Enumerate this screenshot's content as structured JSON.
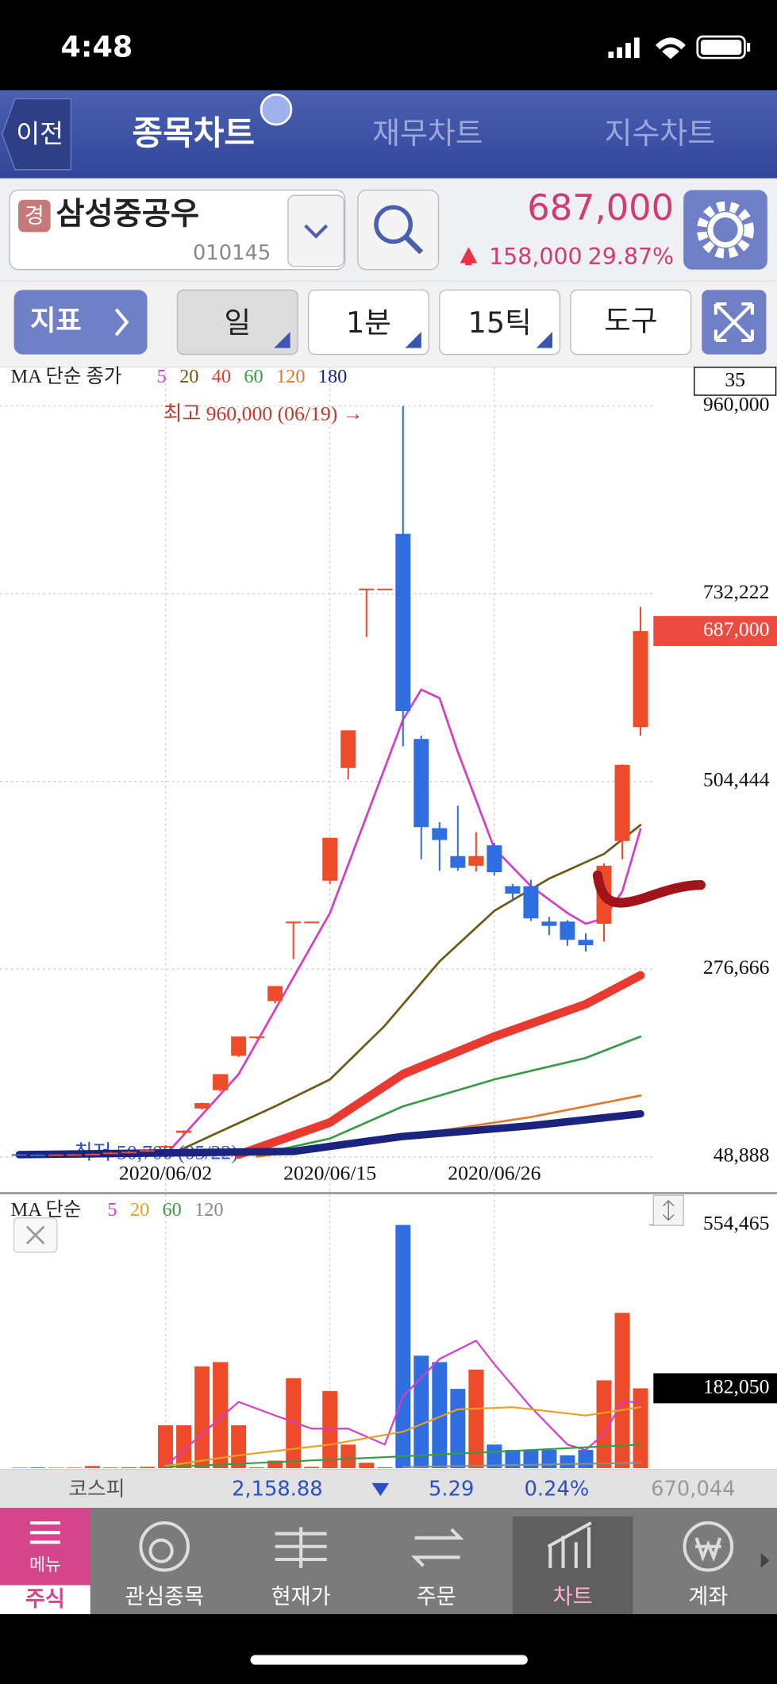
{
  "status_bar": {
    "time": "4:48"
  },
  "nav": {
    "back": "이전",
    "tabs": [
      "종목차트",
      "재무차트",
      "지수차트"
    ]
  },
  "stock": {
    "badge": "경",
    "name": "삼성중공우",
    "code": "010145",
    "price": "687,000",
    "change": "158,000",
    "change_rate": "29.87%"
  },
  "toolbar": [
    "지표",
    "일",
    "1분",
    "15틱",
    "도구"
  ],
  "price_chart": {
    "type": "candlestick",
    "legend_title": "MA 단순 종가",
    "count_label": "35",
    "categories": [
      null,
      null,
      null,
      null,
      null,
      null,
      null,
      null,
      "2020/06/02",
      null,
      null,
      null,
      null,
      null,
      null,
      null,
      null,
      "2020/06/15",
      null,
      null,
      null,
      null,
      null,
      null,
      null,
      null,
      "2020/06/26",
      null,
      null,
      null,
      null,
      null,
      null,
      null,
      null
    ],
    "open": [
      52000,
      51500,
      51000,
      51800,
      52000,
      52500,
      54000,
      55000,
      60000,
      78000,
      107500,
      129700,
      171400,
      194800,
      237800,
      334300,
      334300,
      383900,
      520700,
      738400,
      738400,
      804900,
      555900,
      447700,
      413800,
      402100,
      426900,
      377300,
      377300,
      334300,
      334300,
      312200,
      331700,
      432100,
      570300
    ],
    "high": [
      52500,
      52000,
      52000,
      52500,
      53000,
      55000,
      56000,
      58000,
      63000,
      81000,
      114500,
      149200,
      194800,
      194800,
      256100,
      334300,
      334300,
      436000,
      566400,
      738400,
      738400,
      960000,
      560000,
      455000,
      475000,
      443000,
      430000,
      380000,
      385000,
      340000,
      336000,
      320000,
      405000,
      525000,
      716300
    ],
    "low": [
      51000,
      50700,
      50800,
      51200,
      51500,
      52000,
      53000,
      54500,
      59000,
      76000,
      106000,
      128000,
      170000,
      192000,
      235000,
      288700,
      334300,
      380000,
      507000,
      679700,
      738400,
      547000,
      410000,
      396000,
      396000,
      395000,
      390000,
      360000,
      335000,
      318000,
      305000,
      298000,
      310000,
      410000,
      560000
    ],
    "close": [
      51500,
      51000,
      51800,
      52000,
      52500,
      54000,
      55000,
      57000,
      62000,
      80600,
      114000,
      149200,
      194800,
      194800,
      256100,
      334300,
      334300,
      436000,
      566400,
      738400,
      738400,
      589800,
      449000,
      433400,
      399500,
      413800,
      394300,
      368200,
      338200,
      329100,
      312200,
      305600,
      402100,
      524600,
      687000
    ],
    "up_color": "#ee4b2b",
    "down_color": "#2f6ee0",
    "ylim": [
      6000,
      1007000
    ],
    "yticks": [
      {
        "value": 960000,
        "label": "960,000"
      },
      {
        "value": 732222,
        "label": "732,222"
      },
      {
        "value": 504444,
        "label": "504,444"
      },
      {
        "value": 276666,
        "label": "276,666"
      },
      {
        "value": 48888,
        "label": "48,888"
      }
    ],
    "last_price": {
      "value": 687000,
      "label": "687,000"
    },
    "annotations": [
      "최고 960,000 (06/19) →",
      "← 최저 50,700 (05/22)"
    ],
    "grid": true,
    "ma": [
      {
        "name": "5",
        "color": "#d63cc8",
        "width": 2,
        "x": [
          8,
          12,
          14,
          16,
          17,
          19,
          21,
          22,
          23,
          24,
          26,
          28,
          30,
          31,
          32,
          33,
          34
        ],
        "values": [
          51000,
          149000,
          227400,
          305600,
          344700,
          462000,
          579400,
          615900,
          605500,
          540300,
          423000,
          377300,
          344700,
          331700,
          338200,
          370800,
          446400
        ]
      },
      {
        "name": "20",
        "color": "#6b5a16",
        "width": 2,
        "x": [
          8,
          14,
          17,
          20,
          23,
          26,
          29,
          32,
          34
        ],
        "values": [
          49000,
          110100,
          142700,
          207900,
          286000,
          347400,
          386500,
          416400,
          451600
        ]
      },
      {
        "name": "40",
        "color": "#e83a30",
        "width": 8,
        "x": [
          12,
          17,
          21,
          26,
          31,
          34
        ],
        "values": [
          51500,
          90600,
          149200,
          194800,
          234000,
          269100
        ]
      },
      {
        "name": "60",
        "color": "#3a9a45",
        "width": 2,
        "x": [
          13,
          17,
          21,
          26,
          31,
          34
        ],
        "values": [
          51500,
          71000,
          110100,
          142700,
          168800,
          194800
        ]
      },
      {
        "name": "120",
        "color": "#e07a30",
        "width": 2,
        "x": [
          13,
          21,
          28,
          34
        ],
        "values": [
          49000,
          73600,
          97100,
          123200
        ]
      },
      {
        "name": "180",
        "color": "#1a237e",
        "width": 7,
        "x": [
          0,
          15,
          21,
          28,
          34
        ],
        "values": [
          51500,
          55400,
          73600,
          86600,
          101000
        ]
      }
    ]
  },
  "volume_chart": {
    "type": "bar",
    "legend_title": "MA 단순",
    "values": [
      1000,
      1500,
      1000,
      1200,
      4900,
      1500,
      2000,
      3000,
      97700,
      97700,
      232000,
      241800,
      97700,
      2000,
      17100,
      205100,
      3000,
      175800,
      53700,
      12200,
      2000,
      554465,
      256400,
      241800,
      180700,
      224700,
      53700,
      41500,
      41500,
      41500,
      29300,
      41500,
      200200,
      354100,
      182050
    ],
    "ylim": [
      0,
      622000
    ],
    "yticks": [
      {
        "value": 554465,
        "label": "554,465"
      }
    ],
    "last_value": {
      "value": 182050,
      "label": "182,050"
    },
    "ma": [
      {
        "name": "5",
        "color": "#d63cc8",
        "x": [
          8,
          10,
          12,
          14,
          16,
          18,
          20,
          21,
          23,
          25,
          26,
          28,
          30,
          31,
          32,
          33,
          34
        ],
        "values": [
          4900,
          78000,
          151000,
          120000,
          90000,
          90000,
          53700,
          163600,
          249000,
          290600,
          237000,
          139000,
          53700,
          41500,
          78000,
          151000,
          151000
        ]
      },
      {
        "name": "20",
        "color": "#e8a020",
        "x": [
          8,
          12,
          17,
          21,
          24,
          27,
          31,
          34
        ],
        "values": [
          4900,
          29300,
          53700,
          83000,
          134000,
          139000,
          120000,
          139000
        ]
      },
      {
        "name": "60",
        "color": "#3a9a45",
        "x": [
          8,
          21,
          34
        ],
        "values": [
          2400,
          26900,
          53700
        ]
      },
      {
        "name": "120",
        "color": "#8a8a8a",
        "x": [
          21,
          34
        ],
        "values": [
          2400,
          12200
        ]
      }
    ]
  },
  "market_bar": {
    "index": "코스피",
    "value": "2,158.88",
    "change": "5.29",
    "rate": "0.24%",
    "volume": "670,044"
  },
  "bottom_nav": {
    "menu": "메뉴",
    "items": [
      "주식",
      "관심종목",
      "현재가",
      "주문",
      "차트",
      "계좌"
    ]
  }
}
